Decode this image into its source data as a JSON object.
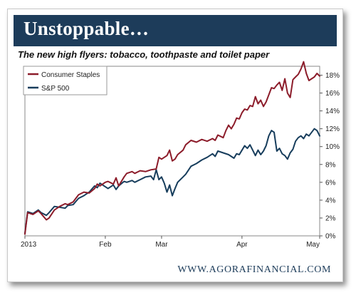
{
  "header": {
    "title": "Unstoppable…"
  },
  "footer": {
    "source": "WWW.AGORAFINANCIAL.COM"
  },
  "colors": {
    "banner": "#1d3c5a",
    "consumer_staples": "#8c1c2a",
    "sp500": "#173d5c"
  },
  "chart_data": {
    "type": "line",
    "title": "The new high flyers: tobacco, toothpaste and toilet paper",
    "xlabel": "",
    "ylabel": "",
    "x_ticks": [
      {
        "label": "2013",
        "day": 0
      },
      {
        "label": "Feb",
        "day": 30
      },
      {
        "label": "Mar",
        "day": 51
      },
      {
        "label": "Apr",
        "day": 81
      },
      {
        "label": "May",
        "day": 110
      }
    ],
    "x_range": [
      0,
      110
    ],
    "y_ticks": [
      "0%",
      "2%",
      "4%",
      "6%",
      "8%",
      "10%",
      "12%",
      "14%",
      "16%",
      "18%"
    ],
    "ylim": [
      0,
      19
    ],
    "grid": false,
    "legend_position": "top-left",
    "series": [
      {
        "name": "Consumer Staples",
        "color": "#8c1c2a",
        "points": [
          [
            0,
            0.2
          ],
          [
            1,
            2.6
          ],
          [
            3,
            2.4
          ],
          [
            5,
            2.8
          ],
          [
            6,
            2.5
          ],
          [
            8,
            1.8
          ],
          [
            9,
            2.0
          ],
          [
            11,
            2.9
          ],
          [
            13,
            3.3
          ],
          [
            15,
            3.6
          ],
          [
            16,
            3.5
          ],
          [
            18,
            3.8
          ],
          [
            20,
            4.6
          ],
          [
            22,
            4.9
          ],
          [
            24,
            4.8
          ],
          [
            26,
            5.3
          ],
          [
            27,
            5.8
          ],
          [
            28,
            5.6
          ],
          [
            30,
            6.0
          ],
          [
            31,
            6.1
          ],
          [
            33,
            5.8
          ],
          [
            34,
            6.5
          ],
          [
            35,
            5.6
          ],
          [
            37,
            6.6
          ],
          [
            38,
            7.0
          ],
          [
            40,
            7.2
          ],
          [
            41,
            7.0
          ],
          [
            43,
            7.3
          ],
          [
            45,
            7.2
          ],
          [
            47,
            7.4
          ],
          [
            49,
            7.5
          ],
          [
            50,
            8.8
          ],
          [
            51,
            8.6
          ],
          [
            53,
            9.0
          ],
          [
            54,
            9.6
          ],
          [
            55,
            8.4
          ],
          [
            56,
            8.6
          ],
          [
            57,
            9.1
          ],
          [
            59,
            9.6
          ],
          [
            60,
            10.2
          ],
          [
            62,
            10.7
          ],
          [
            64,
            10.5
          ],
          [
            66,
            10.8
          ],
          [
            68,
            10.6
          ],
          [
            70,
            10.9
          ],
          [
            71,
            10.7
          ],
          [
            72,
            11.3
          ],
          [
            74,
            11.0
          ],
          [
            75,
            11.8
          ],
          [
            76,
            12.4
          ],
          [
            77,
            12.0
          ],
          [
            78,
            12.5
          ],
          [
            79,
            13.2
          ],
          [
            80,
            13.1
          ],
          [
            81,
            13.8
          ],
          [
            82,
            14.2
          ],
          [
            83,
            14.1
          ],
          [
            84,
            14.6
          ],
          [
            85,
            14.5
          ],
          [
            86,
            15.6
          ],
          [
            87,
            14.8
          ],
          [
            88,
            15.2
          ],
          [
            89,
            14.5
          ],
          [
            90,
            15.0
          ],
          [
            91,
            15.8
          ],
          [
            92,
            16.6
          ],
          [
            93,
            16.5
          ],
          [
            94,
            16.9
          ],
          [
            95,
            17.2
          ],
          [
            96,
            16.3
          ],
          [
            97,
            17.6
          ],
          [
            98,
            16.0
          ],
          [
            99,
            15.5
          ],
          [
            100,
            17.5
          ],
          [
            101,
            17.8
          ],
          [
            102,
            18.1
          ],
          [
            103,
            18.7
          ],
          [
            104,
            19.5
          ],
          [
            105,
            18.2
          ],
          [
            106,
            17.4
          ],
          [
            107,
            17.6
          ],
          [
            108,
            17.8
          ],
          [
            109,
            18.2
          ],
          [
            110,
            17.9
          ]
        ]
      },
      {
        "name": "S&P 500",
        "color": "#173d5c",
        "points": [
          [
            0,
            0.3
          ],
          [
            1,
            2.7
          ],
          [
            3,
            2.5
          ],
          [
            5,
            2.9
          ],
          [
            6,
            2.6
          ],
          [
            8,
            2.3
          ],
          [
            9,
            2.6
          ],
          [
            11,
            3.3
          ],
          [
            13,
            3.2
          ],
          [
            15,
            3.1
          ],
          [
            16,
            3.4
          ],
          [
            18,
            3.5
          ],
          [
            20,
            4.2
          ],
          [
            22,
            4.5
          ],
          [
            24,
            4.9
          ],
          [
            26,
            5.6
          ],
          [
            27,
            5.4
          ],
          [
            28,
            5.9
          ],
          [
            30,
            5.5
          ],
          [
            31,
            5.3
          ],
          [
            33,
            5.7
          ],
          [
            34,
            5.2
          ],
          [
            35,
            5.6
          ],
          [
            37,
            6.1
          ],
          [
            38,
            6.0
          ],
          [
            40,
            6.2
          ],
          [
            41,
            6.0
          ],
          [
            43,
            6.3
          ],
          [
            45,
            6.6
          ],
          [
            47,
            6.7
          ],
          [
            48,
            6.3
          ],
          [
            49,
            7.4
          ],
          [
            50,
            6.3
          ],
          [
            51,
            6.6
          ],
          [
            52,
            5.9
          ],
          [
            53,
            4.9
          ],
          [
            54,
            5.7
          ],
          [
            55,
            4.5
          ],
          [
            56,
            5.3
          ],
          [
            57,
            6.0
          ],
          [
            59,
            6.6
          ],
          [
            60,
            6.9
          ],
          [
            62,
            7.8
          ],
          [
            64,
            8.1
          ],
          [
            66,
            8.5
          ],
          [
            68,
            8.8
          ],
          [
            70,
            9.2
          ],
          [
            71,
            8.9
          ],
          [
            72,
            9.5
          ],
          [
            74,
            9.3
          ],
          [
            76,
            9.1
          ],
          [
            78,
            8.7
          ],
          [
            79,
            9.2
          ],
          [
            80,
            9.1
          ],
          [
            81,
            9.6
          ],
          [
            82,
            10.1
          ],
          [
            83,
            9.8
          ],
          [
            84,
            10.2
          ],
          [
            85,
            9.6
          ],
          [
            86,
            9.0
          ],
          [
            87,
            9.6
          ],
          [
            88,
            9.1
          ],
          [
            89,
            9.5
          ],
          [
            90,
            10.1
          ],
          [
            91,
            11.2
          ],
          [
            92,
            11.8
          ],
          [
            93,
            11.6
          ],
          [
            94,
            9.5
          ],
          [
            95,
            9.8
          ],
          [
            96,
            9.2
          ],
          [
            97,
            9.0
          ],
          [
            98,
            8.6
          ],
          [
            99,
            9.3
          ],
          [
            100,
            9.7
          ],
          [
            101,
            10.6
          ],
          [
            102,
            11.0
          ],
          [
            103,
            11.2
          ],
          [
            104,
            10.9
          ],
          [
            105,
            11.4
          ],
          [
            106,
            11.2
          ],
          [
            107,
            11.6
          ],
          [
            108,
            12.0
          ],
          [
            109,
            11.8
          ],
          [
            110,
            11.2
          ]
        ]
      }
    ]
  }
}
